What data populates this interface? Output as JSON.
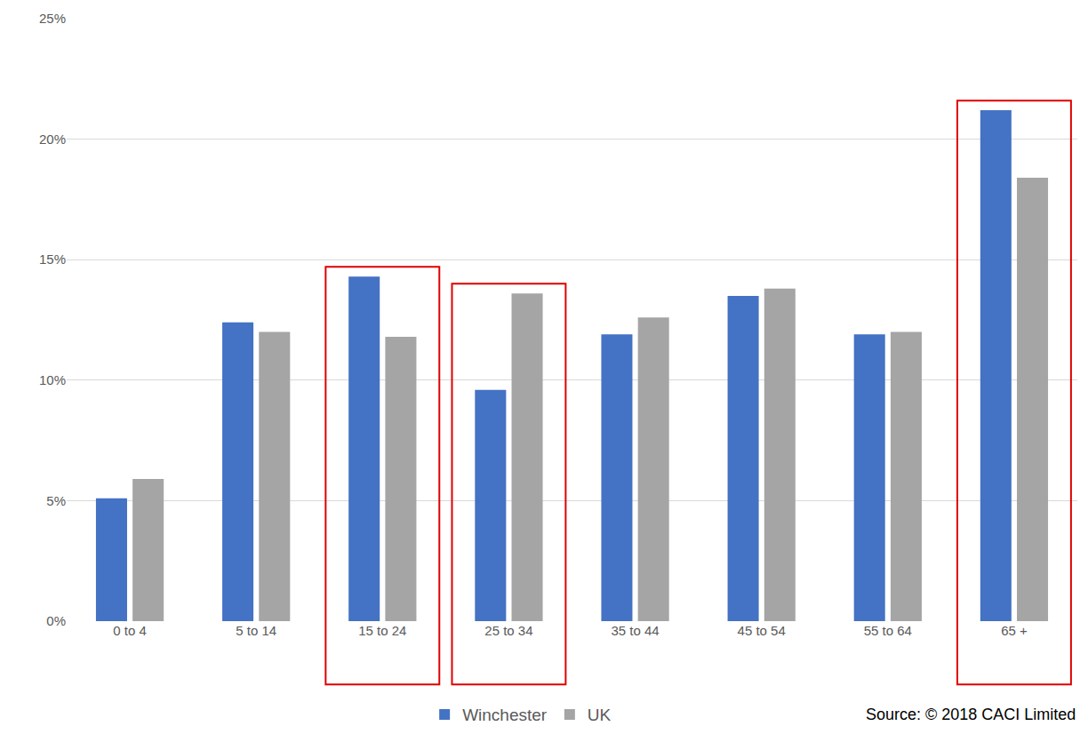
{
  "chart_data": {
    "type": "bar",
    "categories": [
      "0 to 4",
      "5 to 14",
      "15 to 24",
      "25 to 34",
      "35 to 44",
      "45 to 54",
      "55 to 64",
      "65 +"
    ],
    "series": [
      {
        "name": "Winchester",
        "color": "#4472c4",
        "values": [
          5.1,
          12.4,
          14.3,
          9.6,
          11.9,
          13.5,
          11.9,
          21.2
        ]
      },
      {
        "name": "UK",
        "color": "#a5a5a5",
        "values": [
          5.9,
          12.0,
          11.8,
          13.6,
          12.6,
          13.8,
          12.0,
          18.4
        ]
      }
    ],
    "ylim": [
      0,
      25
    ],
    "yticks": [
      {
        "value": 0,
        "label": "0%"
      },
      {
        "value": 5,
        "label": "5%"
      },
      {
        "value": 10,
        "label": "10%"
      },
      {
        "value": 15,
        "label": "15%"
      },
      {
        "value": 20,
        "label": "20%"
      },
      {
        "value": 25,
        "label": "25%"
      }
    ],
    "grid": true,
    "legend": "bottom",
    "annotations": [
      "Source: © 2018 CACI Limited"
    ]
  }
}
